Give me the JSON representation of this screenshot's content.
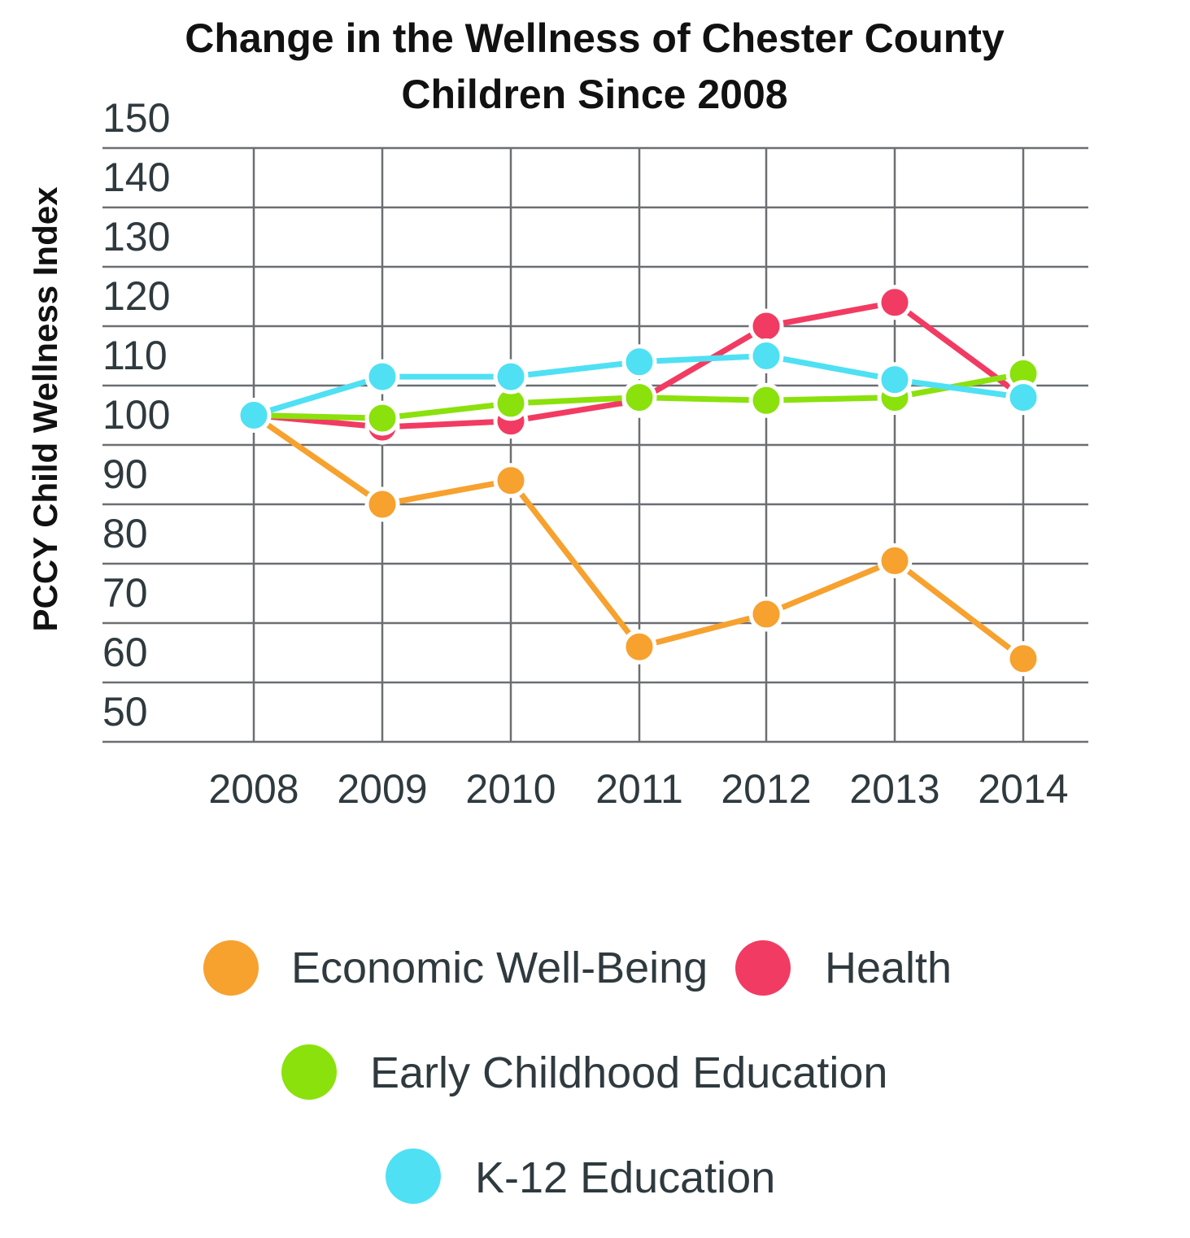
{
  "chart_data": {
    "type": "line",
    "title": [
      "Change in the Wellness of Chester County",
      "Children Since 2008"
    ],
    "ylabel": "PCCY Child Wellness Index",
    "xlabel": "",
    "categories": [
      "2008",
      "2009",
      "2010",
      "2011",
      "2012",
      "2013",
      "2014"
    ],
    "yticks": [
      150,
      140,
      130,
      120,
      110,
      100,
      90,
      80,
      70,
      60,
      50
    ],
    "ylim": [
      45,
      150
    ],
    "grid": true,
    "legend_position": "bottom",
    "series": [
      {
        "name": "Economic Well-Being",
        "color": "#F7A12E",
        "values": [
          100,
          85,
          89,
          61,
          66.5,
          75.5,
          59
        ]
      },
      {
        "name": "Health",
        "color": "#F23B62",
        "values": [
          100,
          98,
          99,
          102.5,
          115,
          119,
          103
        ]
      },
      {
        "name": "Early Childhood Education",
        "color": "#8BE10C",
        "values": [
          100,
          99.5,
          102,
          103,
          102.5,
          103,
          107
        ]
      },
      {
        "name": "K-12 Education",
        "color": "#4FE0F4",
        "values": [
          100,
          106.5,
          106.5,
          109,
          110,
          106,
          103
        ]
      }
    ]
  }
}
